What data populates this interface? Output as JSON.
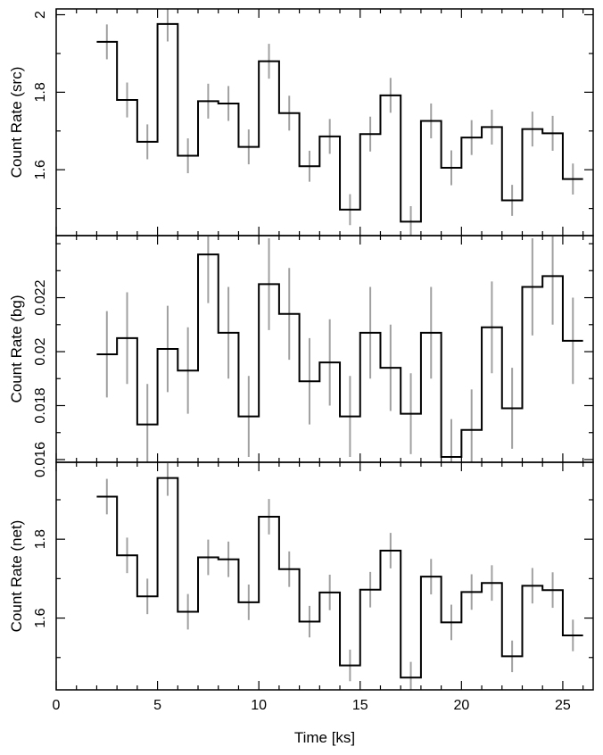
{
  "chart_data": [
    {
      "type": "line",
      "ylabel": "Count Rate (src)",
      "ylim": [
        1.43,
        2.015
      ],
      "yticks_major": [
        1.6,
        1.8,
        2.0
      ],
      "yticks_major_labels": [
        "1.6",
        "1.8",
        "2"
      ],
      "yticks_minor_step": 0.1,
      "x": [
        2.5,
        3.5,
        4.5,
        5.5,
        6.5,
        7.5,
        8.5,
        9.5,
        10.5,
        11.5,
        12.5,
        13.5,
        14.5,
        15.5,
        16.5,
        17.5,
        18.5,
        19.5,
        20.5,
        21.5,
        22.5,
        23.5,
        24.5,
        25.5
      ],
      "values": [
        1.93,
        1.78,
        1.672,
        1.976,
        1.636,
        1.777,
        1.771,
        1.659,
        1.88,
        1.746,
        1.609,
        1.686,
        1.497,
        1.692,
        1.792,
        1.466,
        1.726,
        1.605,
        1.683,
        1.71,
        1.521,
        1.705,
        1.694,
        1.576
      ],
      "errors": [
        0.045,
        0.045,
        0.045,
        0.045,
        0.045,
        0.045,
        0.045,
        0.045,
        0.045,
        0.045,
        0.04,
        0.045,
        0.04,
        0.045,
        0.045,
        0.04,
        0.045,
        0.045,
        0.045,
        0.045,
        0.04,
        0.045,
        0.045,
        0.04
      ]
    },
    {
      "type": "line",
      "ylabel": "Count Rate (bg)",
      "ylim": [
        0.0159,
        0.0243
      ],
      "yticks_major": [
        0.016,
        0.018,
        0.02,
        0.022
      ],
      "yticks_major_labels": [
        "0.016",
        "0.018",
        "0.02",
        "0.022"
      ],
      "yticks_minor_step": 0.001,
      "x": [
        2.5,
        3.5,
        4.5,
        5.5,
        6.5,
        7.5,
        8.5,
        9.5,
        10.5,
        11.5,
        12.5,
        13.5,
        14.5,
        15.5,
        16.5,
        17.5,
        18.5,
        19.5,
        20.5,
        21.5,
        22.5,
        23.5,
        24.5,
        25.5
      ],
      "values": [
        0.0199,
        0.0205,
        0.0173,
        0.0201,
        0.0193,
        0.0236,
        0.0207,
        0.0176,
        0.0225,
        0.0214,
        0.0189,
        0.0196,
        0.0176,
        0.0207,
        0.0194,
        0.0177,
        0.0207,
        0.0161,
        0.0171,
        0.0209,
        0.0179,
        0.0224,
        0.0228,
        0.0204
      ],
      "errors": [
        0.0016,
        0.0017,
        0.0015,
        0.0016,
        0.0016,
        0.0018,
        0.0017,
        0.0015,
        0.0017,
        0.0017,
        0.0016,
        0.0016,
        0.0015,
        0.0017,
        0.0016,
        0.0015,
        0.0017,
        0.0014,
        0.0015,
        0.0017,
        0.0015,
        0.0018,
        0.0018,
        0.0016
      ]
    },
    {
      "type": "line",
      "ylabel": "Count Rate (net)",
      "xlabel": "Time [ks]",
      "ylim": [
        1.418,
        1.995
      ],
      "yticks_major": [
        1.6,
        1.8
      ],
      "yticks_major_labels": [
        "1.6",
        "1.8"
      ],
      "yticks_minor_step": 0.1,
      "xlim": [
        0,
        26.5
      ],
      "xticks_major": [
        0,
        5,
        10,
        15,
        20,
        25
      ],
      "xticks_major_labels": [
        "0",
        "5",
        "10",
        "15",
        "20",
        "25"
      ],
      "xticks_minor_step": 1,
      "x": [
        2.5,
        3.5,
        4.5,
        5.5,
        6.5,
        7.5,
        8.5,
        9.5,
        10.5,
        11.5,
        12.5,
        13.5,
        14.5,
        15.5,
        16.5,
        17.5,
        18.5,
        19.5,
        20.5,
        21.5,
        22.5,
        23.5,
        24.5,
        25.5
      ],
      "values": [
        1.908,
        1.759,
        1.655,
        1.955,
        1.616,
        1.754,
        1.749,
        1.64,
        1.857,
        1.724,
        1.591,
        1.665,
        1.48,
        1.672,
        1.771,
        1.449,
        1.705,
        1.589,
        1.666,
        1.689,
        1.503,
        1.682,
        1.671,
        1.556
      ],
      "errors": [
        0.045,
        0.045,
        0.045,
        0.045,
        0.045,
        0.045,
        0.045,
        0.045,
        0.045,
        0.045,
        0.04,
        0.045,
        0.04,
        0.045,
        0.045,
        0.04,
        0.045,
        0.045,
        0.045,
        0.045,
        0.04,
        0.045,
        0.045,
        0.04
      ]
    }
  ],
  "colors": {
    "step_line": "#000000",
    "error_bar": "#a0a0a0",
    "frame": "#000000"
  }
}
